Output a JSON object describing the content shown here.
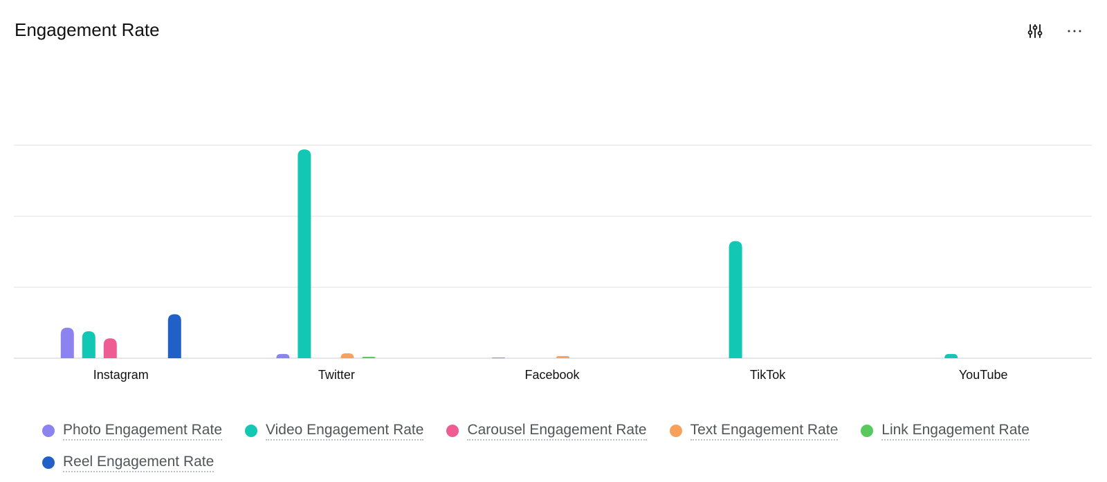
{
  "header": {
    "title": "Engagement Rate",
    "filter_icon": "sliders-icon",
    "more_icon": "more-horizontal-icon"
  },
  "chart_data": {
    "type": "bar",
    "title": "Engagement Rate",
    "xlabel": "",
    "ylabel": "",
    "ylim": [
      0,
      3
    ],
    "grid": true,
    "y_tick_labels_shown": false,
    "legend_position": "bottom",
    "categories": [
      "Instagram",
      "Twitter",
      "Facebook",
      "TikTok",
      "YouTube"
    ],
    "series": [
      {
        "name": "Photo Engagement Rate",
        "color": "#8c82f0",
        "values": [
          0.43,
          0.06,
          0.01,
          0,
          0
        ]
      },
      {
        "name": "Video Engagement Rate",
        "color": "#12c7b3",
        "values": [
          0.38,
          2.94,
          0,
          1.65,
          0.06
        ]
      },
      {
        "name": "Carousel Engagement Rate",
        "color": "#ef5b93",
        "values": [
          0.28,
          0,
          0,
          0,
          0
        ]
      },
      {
        "name": "Text Engagement Rate",
        "color": "#f9a05b",
        "values": [
          0,
          0.07,
          0.03,
          0,
          0
        ]
      },
      {
        "name": "Link Engagement Rate",
        "color": "#58c95e",
        "values": [
          0,
          0.02,
          0,
          0,
          0
        ]
      },
      {
        "name": "Reel Engagement Rate",
        "color": "#2060c8",
        "values": [
          0.62,
          0,
          0,
          0,
          0
        ]
      }
    ]
  }
}
